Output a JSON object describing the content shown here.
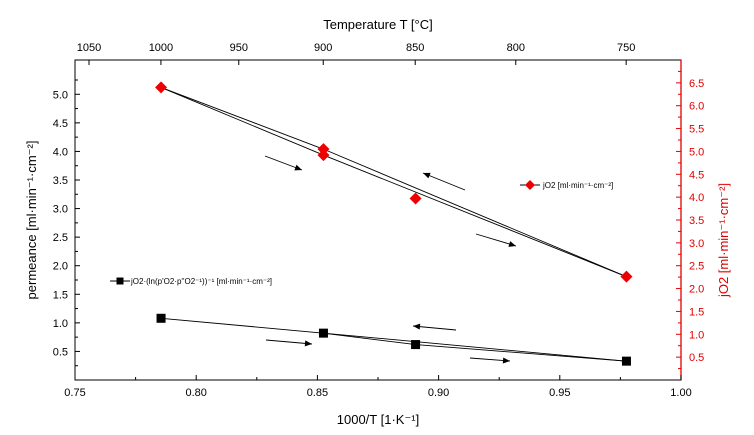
{
  "chart_data": {
    "type": "scatter",
    "x_axis": {
      "label": "1000/T [1·K⁻¹]",
      "range": [
        0.75,
        1.0
      ],
      "ticks": [
        "0.75",
        "0.80",
        "0.85",
        "0.90",
        "0.95",
        "1.00"
      ]
    },
    "top_axis": {
      "label": "Temperature T [°C]",
      "ticks": [
        {
          "label": "1050",
          "celsius": 1050
        },
        {
          "label": "1000",
          "celsius": 1000
        },
        {
          "label": "950",
          "celsius": 950
        },
        {
          "label": "900",
          "celsius": 900
        },
        {
          "label": "850",
          "celsius": 850
        },
        {
          "label": "800",
          "celsius": 800
        },
        {
          "label": "750",
          "celsius": 750
        }
      ]
    },
    "y_axis_left": {
      "label": "permeance [ml·min⁻¹·cm⁻²]",
      "range": [
        0.0,
        5.6
      ],
      "ticks": [
        "0.5",
        "1.0",
        "1.5",
        "2.0",
        "2.5",
        "3.0",
        "3.5",
        "4.0",
        "4.5",
        "5.0"
      ]
    },
    "y_axis_right": {
      "label": "jO2 [ml·min⁻¹·cm⁻²]",
      "range": [
        0.0,
        7.0
      ],
      "ticks": [
        "0.5",
        "1.0",
        "1.5",
        "2.0",
        "2.5",
        "3.0",
        "3.5",
        "4.0",
        "4.5",
        "5.0",
        "5.5",
        "6.0",
        "6.5"
      ]
    },
    "series": [
      {
        "name": "jO2 [ml·min⁻¹·cm⁻²]",
        "axis": "right",
        "marker": "diamond",
        "color": "#ee0000",
        "x": [
          0.7855,
          0.8525,
          0.8525,
          0.8905,
          0.9775
        ],
        "y": [
          6.4,
          5.05,
          4.92,
          3.97,
          2.26
        ]
      },
      {
        "name": "jO2·(ln(p'O2·p''O2⁻¹))⁻¹ [ml·min⁻¹·cm⁻²]",
        "axis": "left",
        "marker": "square",
        "color": "#000000",
        "x": [
          0.7855,
          0.8525,
          0.8905,
          0.9775
        ],
        "y": [
          1.08,
          0.82,
          0.62,
          0.33
        ]
      }
    ],
    "legend": [
      {
        "series": 0,
        "label": "jO2 [ml·min⁻¹·cm⁻²]"
      },
      {
        "series": 1,
        "label": "jO2·(ln(p'O2·p''O2⁻¹))⁻¹ [ml·min⁻¹·cm⁻²]"
      }
    ]
  }
}
